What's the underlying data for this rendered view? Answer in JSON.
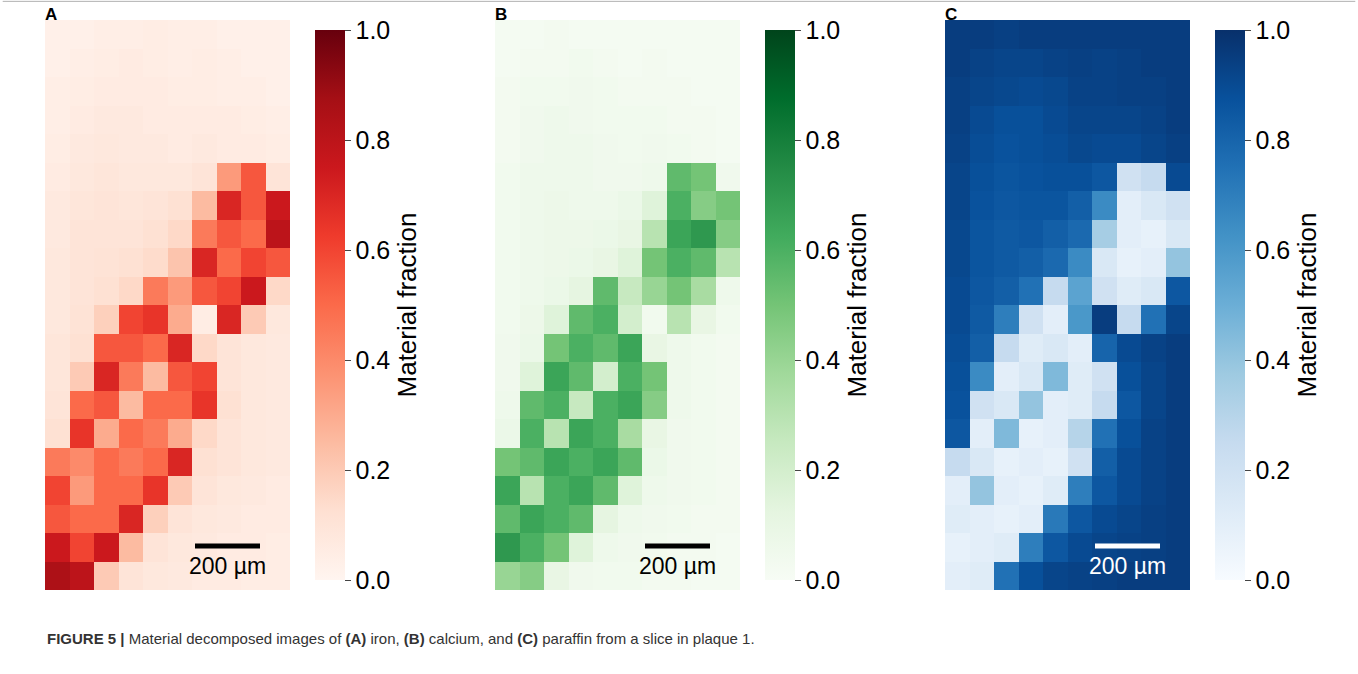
{
  "caption": "FIGURE 5 | Material decomposed images of (A) iron, (B) calcium, and (C) paraffin from a slice in plaque 1.",
  "chart_data": [
    {
      "type": "heatmap",
      "panel": "A",
      "color": "Reds",
      "tick_labels": false,
      "annotations": [
        "200 µm"
      ],
      "colorbar": {
        "title": "Material fraction",
        "range": [
          0,
          1
        ],
        "ticks": [
          {
            "value": 0,
            "label": "0.0"
          },
          0.2,
          0.4,
          0.6,
          0.8,
          {
            "value": 1,
            "label": "1.0"
          }
        ]
      },
      "cells": [
        [
          0.03,
          0.03,
          0.04,
          0.04,
          0.05,
          0.04,
          0.04,
          0.03,
          0.03,
          0.03
        ],
        [
          0.03,
          0.04,
          0.05,
          0.06,
          0.05,
          0.04,
          0.05,
          0.04,
          0.03,
          0.03
        ],
        [
          0.04,
          0.05,
          0.06,
          0.06,
          0.06,
          0.05,
          0.05,
          0.04,
          0.04,
          0.03
        ],
        [
          0.04,
          0.06,
          0.07,
          0.07,
          0.06,
          0.06,
          0.06,
          0.06,
          0.05,
          0.04
        ],
        [
          0.05,
          0.07,
          0.08,
          0.07,
          0.07,
          0.06,
          0.07,
          0.06,
          0.06,
          0.05
        ],
        [
          0.06,
          0.08,
          0.09,
          0.08,
          0.08,
          0.08,
          0.1,
          0.35,
          0.55,
          0.1
        ],
        [
          0.07,
          0.09,
          0.1,
          0.09,
          0.1,
          0.12,
          0.25,
          0.7,
          0.55,
          0.75
        ],
        [
          0.07,
          0.1,
          0.1,
          0.1,
          0.12,
          0.15,
          0.45,
          0.55,
          0.5,
          0.8
        ],
        [
          0.08,
          0.1,
          0.11,
          0.12,
          0.14,
          0.22,
          0.7,
          0.5,
          0.6,
          0.55
        ],
        [
          0.08,
          0.1,
          0.12,
          0.15,
          0.45,
          0.35,
          0.55,
          0.6,
          0.75,
          0.15
        ],
        [
          0.08,
          0.11,
          0.18,
          0.6,
          0.65,
          0.3,
          0.05,
          0.7,
          0.2,
          0.08
        ],
        [
          0.09,
          0.12,
          0.55,
          0.55,
          0.5,
          0.7,
          0.15,
          0.1,
          0.08,
          0.07
        ],
        [
          0.09,
          0.2,
          0.7,
          0.45,
          0.25,
          0.55,
          0.6,
          0.1,
          0.08,
          0.07
        ],
        [
          0.1,
          0.5,
          0.55,
          0.25,
          0.5,
          0.5,
          0.65,
          0.12,
          0.08,
          0.07
        ],
        [
          0.12,
          0.65,
          0.3,
          0.5,
          0.45,
          0.3,
          0.15,
          0.1,
          0.08,
          0.07
        ],
        [
          0.45,
          0.4,
          0.5,
          0.45,
          0.5,
          0.7,
          0.12,
          0.1,
          0.08,
          0.07
        ],
        [
          0.6,
          0.35,
          0.5,
          0.5,
          0.65,
          0.2,
          0.1,
          0.08,
          0.07,
          0.06
        ],
        [
          0.55,
          0.5,
          0.5,
          0.7,
          0.18,
          0.1,
          0.08,
          0.07,
          0.06,
          0.06
        ],
        [
          0.75,
          0.6,
          0.75,
          0.25,
          0.1,
          0.08,
          0.07,
          0.06,
          0.06,
          0.05
        ],
        [
          0.85,
          0.8,
          0.2,
          0.1,
          0.08,
          0.07,
          0.06,
          0.06,
          0.05,
          0.05
        ]
      ]
    },
    {
      "type": "heatmap",
      "panel": "B",
      "color": "Greens",
      "tick_labels": false,
      "annotations": [
        "200 µm"
      ],
      "colorbar": {
        "title": "Material fraction",
        "range": [
          0,
          1
        ],
        "ticks": [
          {
            "value": 0,
            "label": "0.0"
          },
          0.2,
          0.4,
          0.6,
          0.8,
          {
            "value": 1,
            "label": "1.0"
          }
        ]
      },
      "cells": [
        [
          0.02,
          0.02,
          0.03,
          0.02,
          0.02,
          0.02,
          0.02,
          0.02,
          0.02,
          0.02
        ],
        [
          0.02,
          0.03,
          0.03,
          0.04,
          0.03,
          0.02,
          0.03,
          0.02,
          0.02,
          0.02
        ],
        [
          0.03,
          0.04,
          0.04,
          0.05,
          0.04,
          0.03,
          0.03,
          0.03,
          0.02,
          0.02
        ],
        [
          0.03,
          0.05,
          0.06,
          0.05,
          0.04,
          0.04,
          0.04,
          0.03,
          0.03,
          0.02
        ],
        [
          0.03,
          0.05,
          0.06,
          0.06,
          0.05,
          0.04,
          0.05,
          0.04,
          0.03,
          0.02
        ],
        [
          0.04,
          0.06,
          0.06,
          0.06,
          0.05,
          0.05,
          0.06,
          0.55,
          0.5,
          0.05
        ],
        [
          0.04,
          0.06,
          0.07,
          0.06,
          0.06,
          0.08,
          0.15,
          0.6,
          0.45,
          0.5
        ],
        [
          0.04,
          0.06,
          0.07,
          0.07,
          0.08,
          0.1,
          0.3,
          0.65,
          0.7,
          0.45
        ],
        [
          0.04,
          0.06,
          0.07,
          0.08,
          0.1,
          0.15,
          0.5,
          0.6,
          0.55,
          0.3
        ],
        [
          0.04,
          0.06,
          0.08,
          0.12,
          0.55,
          0.25,
          0.4,
          0.5,
          0.35,
          0.06
        ],
        [
          0.04,
          0.07,
          0.15,
          0.55,
          0.6,
          0.2,
          0.04,
          0.3,
          0.1,
          0.04
        ],
        [
          0.05,
          0.08,
          0.5,
          0.6,
          0.55,
          0.65,
          0.1,
          0.06,
          0.04,
          0.03
        ],
        [
          0.05,
          0.15,
          0.65,
          0.55,
          0.2,
          0.6,
          0.5,
          0.06,
          0.04,
          0.03
        ],
        [
          0.06,
          0.55,
          0.6,
          0.25,
          0.6,
          0.65,
          0.45,
          0.06,
          0.04,
          0.03
        ],
        [
          0.08,
          0.6,
          0.3,
          0.65,
          0.6,
          0.35,
          0.1,
          0.05,
          0.04,
          0.03
        ],
        [
          0.5,
          0.55,
          0.65,
          0.6,
          0.65,
          0.55,
          0.08,
          0.05,
          0.04,
          0.03
        ],
        [
          0.65,
          0.3,
          0.6,
          0.65,
          0.55,
          0.15,
          0.06,
          0.05,
          0.04,
          0.03
        ],
        [
          0.55,
          0.65,
          0.6,
          0.55,
          0.12,
          0.06,
          0.05,
          0.04,
          0.03,
          0.03
        ],
        [
          0.7,
          0.6,
          0.5,
          0.15,
          0.06,
          0.05,
          0.04,
          0.03,
          0.03,
          0.02
        ],
        [
          0.4,
          0.45,
          0.1,
          0.05,
          0.04,
          0.04,
          0.03,
          0.03,
          0.02,
          0.02
        ]
      ]
    },
    {
      "type": "heatmap",
      "panel": "C",
      "color": "Blues",
      "tick_labels": false,
      "annotations": [
        "200 µm"
      ],
      "colorbar": {
        "title": "Material fraction",
        "range": [
          0,
          1
        ],
        "ticks": [
          {
            "value": 0,
            "label": "0.0"
          },
          0.2,
          0.4,
          0.6,
          0.8,
          {
            "value": 1,
            "label": "1.0"
          }
        ]
      },
      "cells": [
        [
          0.95,
          0.95,
          0.94,
          0.95,
          0.95,
          0.95,
          0.95,
          0.95,
          0.95,
          0.95
        ],
        [
          0.95,
          0.93,
          0.92,
          0.92,
          0.93,
          0.94,
          0.93,
          0.94,
          0.95,
          0.95
        ],
        [
          0.94,
          0.92,
          0.91,
          0.9,
          0.91,
          0.93,
          0.93,
          0.94,
          0.94,
          0.95
        ],
        [
          0.94,
          0.9,
          0.88,
          0.88,
          0.9,
          0.92,
          0.92,
          0.92,
          0.93,
          0.95
        ],
        [
          0.93,
          0.89,
          0.87,
          0.88,
          0.89,
          0.91,
          0.9,
          0.9,
          0.92,
          0.94
        ],
        [
          0.92,
          0.88,
          0.86,
          0.87,
          0.88,
          0.88,
          0.85,
          0.2,
          0.25,
          0.9
        ],
        [
          0.92,
          0.87,
          0.85,
          0.86,
          0.86,
          0.82,
          0.65,
          0.1,
          0.15,
          0.2
        ],
        [
          0.91,
          0.86,
          0.84,
          0.85,
          0.82,
          0.78,
          0.35,
          0.1,
          0.08,
          0.15
        ],
        [
          0.91,
          0.86,
          0.84,
          0.82,
          0.78,
          0.65,
          0.15,
          0.08,
          0.1,
          0.4
        ],
        [
          0.9,
          0.85,
          0.82,
          0.75,
          0.25,
          0.55,
          0.2,
          0.12,
          0.15,
          0.85
        ],
        [
          0.9,
          0.84,
          0.7,
          0.2,
          0.1,
          0.6,
          0.95,
          0.25,
          0.75,
          0.92
        ],
        [
          0.89,
          0.82,
          0.25,
          0.12,
          0.15,
          0.1,
          0.8,
          0.9,
          0.93,
          0.95
        ],
        [
          0.88,
          0.65,
          0.1,
          0.15,
          0.45,
          0.12,
          0.2,
          0.88,
          0.92,
          0.95
        ],
        [
          0.87,
          0.2,
          0.15,
          0.4,
          0.1,
          0.12,
          0.25,
          0.85,
          0.92,
          0.95
        ],
        [
          0.85,
          0.1,
          0.45,
          0.08,
          0.1,
          0.3,
          0.75,
          0.88,
          0.93,
          0.95
        ],
        [
          0.25,
          0.15,
          0.08,
          0.1,
          0.08,
          0.2,
          0.82,
          0.9,
          0.93,
          0.95
        ],
        [
          0.1,
          0.4,
          0.1,
          0.08,
          0.12,
          0.7,
          0.85,
          0.9,
          0.93,
          0.95
        ],
        [
          0.12,
          0.1,
          0.08,
          0.1,
          0.72,
          0.85,
          0.9,
          0.92,
          0.94,
          0.95
        ],
        [
          0.08,
          0.1,
          0.12,
          0.7,
          0.85,
          0.9,
          0.92,
          0.93,
          0.94,
          0.95
        ],
        [
          0.1,
          0.12,
          0.75,
          0.88,
          0.92,
          0.93,
          0.94,
          0.95,
          0.95,
          0.95
        ]
      ]
    }
  ]
}
